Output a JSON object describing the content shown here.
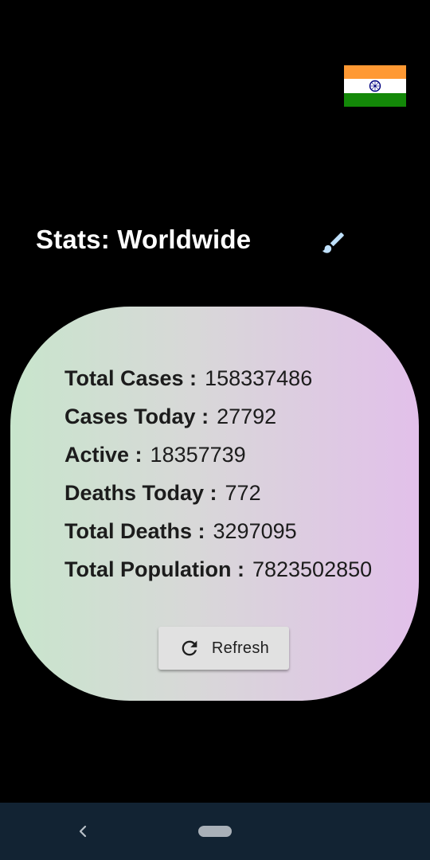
{
  "header": {
    "title": "Stats: Worldwide",
    "flag_icon": "india-flag-icon",
    "theme_icon": "paint-brush-icon"
  },
  "stats": [
    {
      "label": "Total Cases :",
      "value": "158337486"
    },
    {
      "label": "Cases Today :",
      "value": "27792"
    },
    {
      "label": "Active :",
      "value": "18357739"
    },
    {
      "label": "Deaths Today :",
      "value": "772"
    },
    {
      "label": "Total Deaths :",
      "value": "3297095"
    },
    {
      "label": "Total Population :",
      "value": "7823502850"
    }
  ],
  "refresh_button": {
    "label": "Refresh",
    "icon": "refresh-icon"
  },
  "navigation": {
    "back_icon": "back-chevron-icon",
    "home_icon": "home-pill-icon"
  },
  "colors": {
    "background": "#000000",
    "card_gradient_start": "#c8e5cc",
    "card_gradient_end": "#e2c0ea",
    "flag_saffron": "#FF9933",
    "flag_white": "#FFFFFF",
    "flag_green": "#138808",
    "flag_chakra": "#000080",
    "brush_icon": "#bfe0fb",
    "nav_bar": "#122333"
  }
}
